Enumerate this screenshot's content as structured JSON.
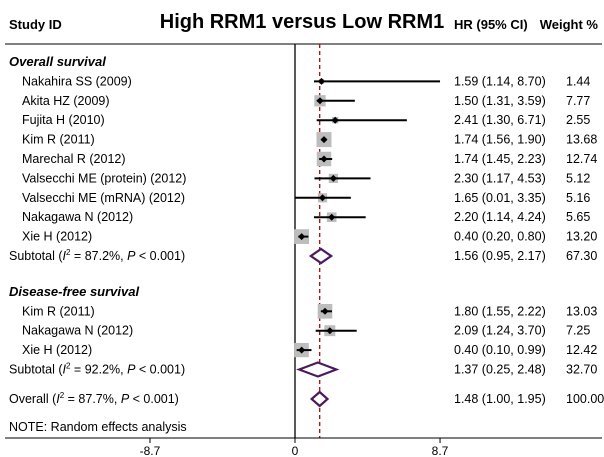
{
  "chart_data": {
    "type": "forest",
    "title": "High RRM1 versus Low RRM1",
    "headers": {
      "study": "Study ID",
      "hr": "HR (95% CI)",
      "weight": "Weight %"
    },
    "x_range": [
      -8.7,
      8.7
    ],
    "x_ticks": [
      {
        "value": -8.7,
        "label": "-8.7"
      },
      {
        "value": 0,
        "label": "0"
      },
      {
        "value": 8.7,
        "label": "8.7"
      }
    ],
    "reference_line": 0,
    "overall_line": 1.48,
    "sections": [
      {
        "name": "Overall survival",
        "studies": [
          {
            "label": "Nakahira SS (2009)",
            "hr": 1.59,
            "lo": 1.14,
            "hi": 8.7,
            "ci_text": "1.59 (1.14, 8.70)",
            "weight": 1.44,
            "weight_text": "1.44"
          },
          {
            "label": "Akita HZ (2009)",
            "hr": 1.5,
            "lo": 1.31,
            "hi": 3.59,
            "ci_text": "1.50 (1.31, 3.59)",
            "weight": 7.77,
            "weight_text": "7.77"
          },
          {
            "label": "Fujita H (2010)",
            "hr": 2.41,
            "lo": 1.3,
            "hi": 6.71,
            "ci_text": "2.41 (1.30, 6.71)",
            "weight": 2.55,
            "weight_text": "2.55"
          },
          {
            "label": "Kim R (2011)",
            "hr": 1.74,
            "lo": 1.56,
            "hi": 1.9,
            "ci_text": "1.74 (1.56, 1.90)",
            "weight": 13.68,
            "weight_text": "13.68"
          },
          {
            "label": "Marechal R (2012)",
            "hr": 1.74,
            "lo": 1.45,
            "hi": 2.23,
            "ci_text": "1.74 (1.45, 2.23)",
            "weight": 12.74,
            "weight_text": "12.74"
          },
          {
            "label": "Valsecchi ME (protein) (2012)",
            "hr": 2.3,
            "lo": 1.17,
            "hi": 4.53,
            "ci_text": "2.30 (1.17, 4.53)",
            "weight": 5.12,
            "weight_text": "5.12"
          },
          {
            "label": "Valsecchi ME (mRNA) (2012)",
            "hr": 1.65,
            "lo": 0.01,
            "hi": 3.35,
            "ci_text": "1.65 (0.01, 3.35)",
            "weight": 5.16,
            "weight_text": "5.16"
          },
          {
            "label": "Nakagawa N (2012)",
            "hr": 2.2,
            "lo": 1.14,
            "hi": 4.24,
            "ci_text": "2.20 (1.14, 4.24)",
            "weight": 5.65,
            "weight_text": "5.65"
          },
          {
            "label": "Xie H (2012)",
            "hr": 0.4,
            "lo": 0.2,
            "hi": 0.8,
            "ci_text": "0.40 (0.20, 0.80)",
            "weight": 13.2,
            "weight_text": "13.20"
          }
        ],
        "subtotal": {
          "prefix": "Subtotal  (",
          "i2_label": "I",
          "sup": "2",
          "rest": " = 87.2%, ",
          "p_label": "P",
          "p_rest": " < 0.001)",
          "hr": 1.56,
          "lo": 0.95,
          "hi": 2.17,
          "ci_text": "1.56 (0.95, 2.17)",
          "weight_text": "67.30"
        }
      },
      {
        "name": "Disease-free survival",
        "studies": [
          {
            "label": "Kim R (2011)",
            "hr": 1.8,
            "lo": 1.55,
            "hi": 2.22,
            "ci_text": "1.80 (1.55, 2.22)",
            "weight": 13.03,
            "weight_text": "13.03"
          },
          {
            "label": "Nakagawa N (2012)",
            "hr": 2.09,
            "lo": 1.24,
            "hi": 3.7,
            "ci_text": "2.09 (1.24, 3.70)",
            "weight": 7.25,
            "weight_text": "7.25"
          },
          {
            "label": "Xie H (2012)",
            "hr": 0.4,
            "lo": 0.1,
            "hi": 0.99,
            "ci_text": "0.40 (0.10, 0.99)",
            "weight": 12.42,
            "weight_text": "12.42"
          }
        ],
        "subtotal": {
          "prefix": "Subtotal  (",
          "i2_label": "I",
          "sup": "2",
          "rest": " = 92.2%, ",
          "p_label": "P",
          "p_rest": " < 0.001)",
          "hr": 1.37,
          "lo": 0.25,
          "hi": 2.48,
          "ci_text": "1.37 (0.25, 2.48)",
          "weight_text": "32.70"
        }
      }
    ],
    "overall": {
      "prefix": "Overall  (",
      "i2_label": "I",
      "sup": "2",
      "rest": " = 87.7%, ",
      "p_label": "P",
      "p_rest": " < 0.001)",
      "hr": 1.48,
      "lo": 1.0,
      "hi": 1.95,
      "ci_text": "1.48 (1.00, 1.95)",
      "weight_text": "100.00"
    },
    "note": "NOTE: Random effects analysis",
    "colors": {
      "box": "#bdbdbd",
      "diamond": "#4b1a5e",
      "overall_line": "#a01a1a",
      "line": "#000000"
    }
  }
}
